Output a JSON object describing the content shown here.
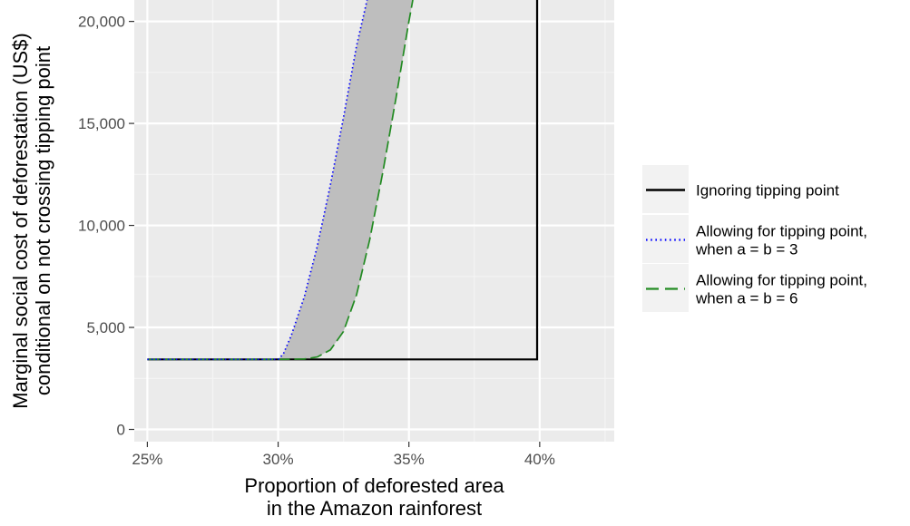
{
  "chart_data": {
    "type": "line",
    "title": "",
    "xlabel_lines": [
      "Proportion of deforested area",
      "in the Amazon rainforest"
    ],
    "ylabel_lines": [
      "Marginal social cost of deforestation (US$)",
      "conditional on not crossing tipping point"
    ],
    "xlim": [
      0.245,
      0.4285
    ],
    "ylim": [
      -600,
      21050
    ],
    "x_ticks": [
      0.25,
      0.3,
      0.35,
      0.4
    ],
    "x_tick_labels": [
      "25%",
      "30%",
      "35%",
      "40%"
    ],
    "y_ticks": [
      0,
      5000,
      10000,
      15000,
      20000
    ],
    "y_tick_labels": [
      "0",
      "5,000",
      "10,000",
      "15,000",
      "20,000"
    ],
    "grid": true,
    "legend_position": "right",
    "ribbon": {
      "color": "#bebebe",
      "between": [
        "Allowing for tipping point,\nwhen a = b = 3",
        "Allowing for tipping point,\nwhen a = b = 6"
      ]
    },
    "series": [
      {
        "name": "Ignoring tipping point",
        "style": "solid",
        "color": "#000000",
        "x": [
          0.25,
          0.399,
          0.399
        ],
        "y": [
          3430,
          3430,
          21050
        ]
      },
      {
        "name": "Allowing for tipping point,\nwhen a = b = 3",
        "style": "dotted",
        "color": "#0000ff",
        "x": [
          0.25,
          0.3,
          0.302,
          0.305,
          0.31,
          0.315,
          0.32,
          0.325,
          0.33,
          0.334
        ],
        "y": [
          3430,
          3430,
          3700,
          4600,
          6500,
          9000,
          12000,
          15300,
          18800,
          21050
        ]
      },
      {
        "name": "Allowing for tipping point,\nwhen a = b = 6",
        "style": "dashed",
        "color": "#228b22",
        "x": [
          0.25,
          0.3,
          0.31,
          0.315,
          0.32,
          0.325,
          0.33,
          0.335,
          0.34,
          0.345,
          0.35,
          0.3515
        ],
        "y": [
          3430,
          3430,
          3450,
          3550,
          3900,
          4800,
          6600,
          9300,
          12600,
          16200,
          20000,
          21050
        ]
      }
    ]
  }
}
